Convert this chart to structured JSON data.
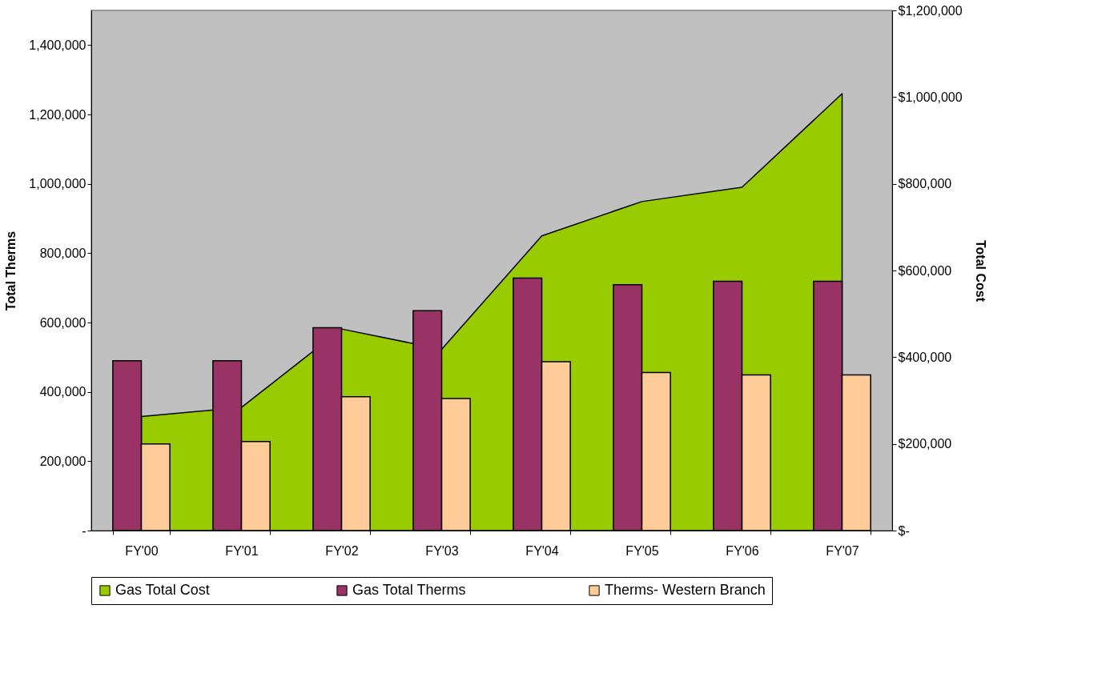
{
  "chart_data": {
    "type": "bar",
    "categories": [
      "FY'00",
      "FY'01",
      "FY'02",
      "FY'03",
      "FY'04",
      "FY'05",
      "FY'06",
      "FY'07"
    ],
    "ylabel": "Total Therms",
    "y2label": "Total Cost",
    "ylim": [
      0,
      1500000
    ],
    "yticks": [
      {
        "value": 0,
        "label": "-"
      },
      {
        "value": 200000,
        "label": "200,000"
      },
      {
        "value": 400000,
        "label": "400,000"
      },
      {
        "value": 600000,
        "label": "600,000"
      },
      {
        "value": 800000,
        "label": "800,000"
      },
      {
        "value": 1000000,
        "label": "1,000,000"
      },
      {
        "value": 1200000,
        "label": "1,200,000"
      },
      {
        "value": 1400000,
        "label": "1,400,000"
      }
    ],
    "y2lim": [
      0,
      1200000
    ],
    "y2ticks": [
      {
        "value": 0,
        "label": "$-"
      },
      {
        "value": 200000,
        "label": "$200,000"
      },
      {
        "value": 400000,
        "label": "$400,000"
      },
      {
        "value": 600000,
        "label": "$600,000"
      },
      {
        "value": 800000,
        "label": "$800,000"
      },
      {
        "value": 1000000,
        "label": "$1,000,000"
      },
      {
        "value": 1200000,
        "label": "$1,200,000"
      }
    ],
    "series": [
      {
        "name": "Gas  Total Cost",
        "type": "area",
        "axis": "y2",
        "color": "#99cc00",
        "values": [
          263000,
          284000,
          465000,
          418000,
          680000,
          759000,
          792000,
          1008000
        ]
      },
      {
        "name": "Gas Total Therms",
        "color": "#993366",
        "values": [
          490000,
          490000,
          585000,
          634000,
          728000,
          709000,
          719000,
          719000
        ]
      },
      {
        "name": "Therms- Western Branch",
        "color": "#ffcc99",
        "values": [
          250000,
          257000,
          386000,
          381000,
          487000,
          456000,
          449000,
          449000
        ]
      }
    ],
    "grid": false,
    "legend": "bottom"
  }
}
